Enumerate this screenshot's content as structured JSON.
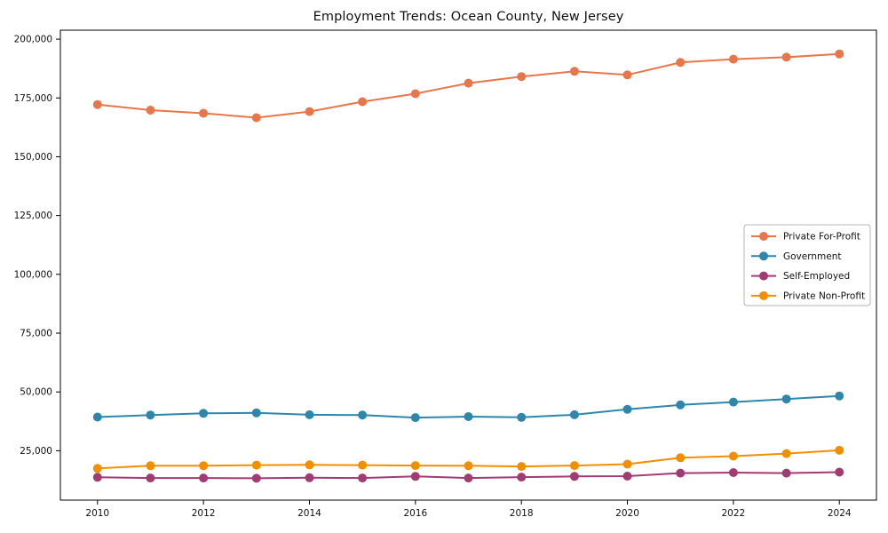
{
  "chart_data": {
    "type": "line",
    "title": "Employment Trends: Ocean County, New Jersey",
    "xlabel": "",
    "ylabel": "",
    "x": [
      2010,
      2011,
      2012,
      2013,
      2014,
      2015,
      2016,
      2017,
      2018,
      2019,
      2020,
      2021,
      2022,
      2023,
      2024
    ],
    "series": [
      {
        "name": "Private For-Profit",
        "color": "#E8764B",
        "values": [
          172200,
          169800,
          168500,
          166600,
          169200,
          173400,
          176800,
          181300,
          184100,
          186300,
          184800,
          190100,
          191500,
          192300,
          193700
        ]
      },
      {
        "name": "Government",
        "color": "#2E86AB",
        "values": [
          39300,
          40200,
          40900,
          41100,
          40300,
          40200,
          39100,
          39500,
          39200,
          40300,
          42600,
          44500,
          45700,
          47000,
          48300
        ]
      },
      {
        "name": "Self-Employed",
        "color": "#A23B72",
        "values": [
          13700,
          13400,
          13400,
          13300,
          13500,
          13400,
          14100,
          13400,
          13800,
          14100,
          14200,
          15500,
          15700,
          15500,
          15900
        ]
      },
      {
        "name": "Private Non-Profit",
        "color": "#F18F01",
        "values": [
          17500,
          18600,
          18600,
          18900,
          19000,
          18900,
          18700,
          18600,
          18300,
          18700,
          19300,
          22000,
          22700,
          23800,
          25200
        ]
      }
    ],
    "xticks": [
      2010,
      2012,
      2014,
      2016,
      2018,
      2020,
      2022,
      2024
    ],
    "yticks": [
      25000,
      50000,
      75000,
      100000,
      125000,
      150000,
      175000,
      200000
    ],
    "ytick_labels": [
      "25,000",
      "50,000",
      "75,000",
      "100,000",
      "125,000",
      "150,000",
      "175,000",
      "200,000"
    ],
    "xlim": [
      2009.3,
      2024.7
    ],
    "ylim": [
      4000,
      203800
    ],
    "grid": false,
    "legend_position": "center-right",
    "marker": "circle",
    "frame_color": "#000000",
    "legend_border_color": "#b3b3b3"
  }
}
